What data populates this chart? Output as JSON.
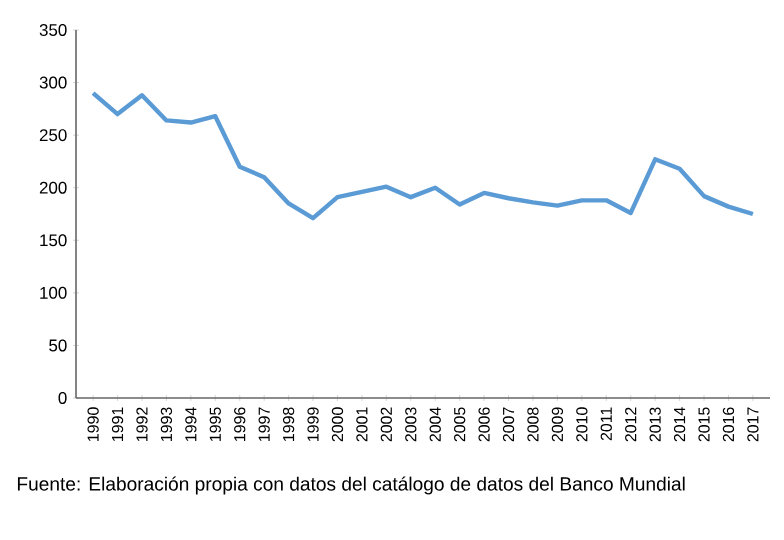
{
  "chart_data": {
    "type": "line",
    "categories": [
      "1990",
      "1991",
      "1992",
      "1993",
      "1994",
      "1995",
      "1996",
      "1997",
      "1998",
      "1999",
      "2000",
      "2001",
      "2002",
      "2003",
      "2004",
      "2005",
      "2006",
      "2007",
      "2008",
      "2009",
      "2010",
      "2011",
      "2012",
      "2013",
      "2014",
      "2015",
      "2016",
      "2017"
    ],
    "series": [
      {
        "color": "#5b9bd5",
        "values": [
          290,
          270,
          288,
          264,
          262,
          268,
          220,
          210,
          185,
          171,
          191,
          196,
          201,
          191,
          200,
          184,
          195,
          190,
          186,
          183,
          188,
          188,
          176,
          227,
          218,
          192,
          182,
          175
        ]
      }
    ],
    "ylim": [
      0,
      350
    ],
    "yticks": [
      0,
      50,
      100,
      150,
      200,
      250,
      300,
      350
    ],
    "marker": "none",
    "line_style": "solid",
    "annotations": [
      "Fuente: Elaboración propia con datos del catálogo de datos del Banco Mundial"
    ]
  }
}
